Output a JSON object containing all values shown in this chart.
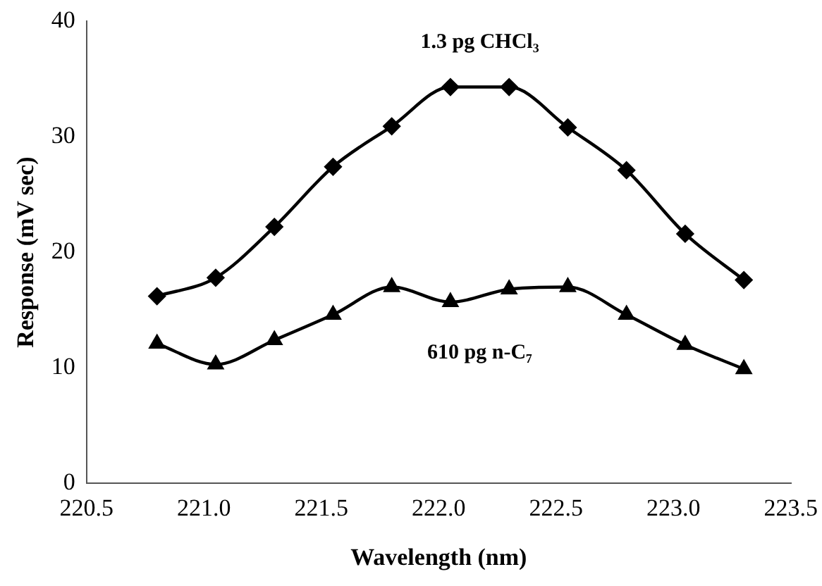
{
  "chart_data": {
    "type": "line",
    "xlabel": "Wavelength (nm)",
    "ylabel": "Response (mV sec)",
    "x": [
      220.8,
      221.05,
      221.3,
      221.55,
      221.8,
      222.05,
      222.3,
      222.55,
      222.8,
      223.05,
      223.3
    ],
    "series": [
      {
        "name": "1.3 pg CHCl₃",
        "color": "#000000",
        "marker": "diamond",
        "values": [
          16.2,
          17.8,
          22.2,
          27.4,
          30.9,
          34.3,
          34.3,
          30.8,
          27.1,
          21.6,
          17.6
        ]
      },
      {
        "name": "610 pg n-C₇",
        "color": "#000000",
        "marker": "triangle",
        "values": [
          12.1,
          10.3,
          12.4,
          14.6,
          17.0,
          15.7,
          16.8,
          17.0,
          14.6,
          12.0,
          9.9
        ]
      }
    ],
    "xlim": [
      220.5,
      223.5
    ],
    "xticks": [
      {
        "value": 220.5,
        "label": "220.5"
      },
      {
        "value": 221,
        "label": "221.0"
      },
      {
        "value": 221.5,
        "label": "221.5"
      },
      {
        "value": 222,
        "label": "222.0"
      },
      {
        "value": 222.5,
        "label": "222.5"
      },
      {
        "value": 223,
        "label": "223.0"
      },
      {
        "value": 223.5,
        "label": "223.5"
      }
    ],
    "ylim": [
      0,
      40
    ],
    "yticks": [
      0,
      10,
      20,
      30,
      40
    ],
    "grid": false,
    "legend": false
  }
}
